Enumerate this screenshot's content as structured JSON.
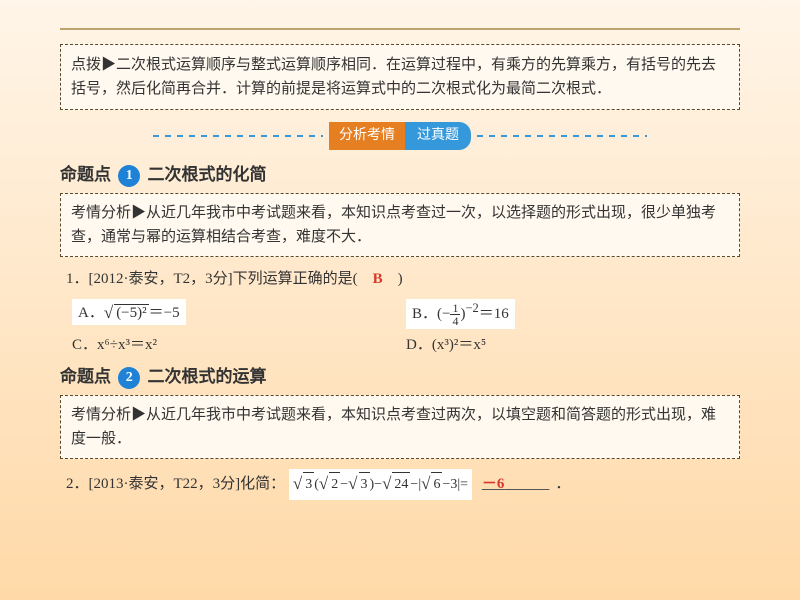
{
  "tip": {
    "label": "点拨▶",
    "text": "二次根式运算顺序与整式运算顺序相同．在运算过程中，有乘方的先算乘方，有括号的先去括号，然后化简再合并．计算的前提是将运算式中的二次根式化为最简二次根式．"
  },
  "banner": {
    "left": "分析考情",
    "right": "过真题"
  },
  "topic1": {
    "prefix": "命题点",
    "num": "1",
    "title": "二次根式的化简",
    "analysis_label": "考情分析▶",
    "analysis_text": "从近几年我市中考试题来看，本知识点考查过一次，以选择题的形式出现，很少单独考查，通常与幂的运算相结合考查，难度不大．",
    "q_label": "1．[2012·泰安，T2，3分]下列运算正确的是(　",
    "q_tail": "　)",
    "answer": "B",
    "optA_label": "A．",
    "optB_label": "B．",
    "optC": "C．x⁶÷x³＝x²",
    "optD": "D．(x³)²＝x⁵"
  },
  "topic2": {
    "prefix": "命题点",
    "num": "2",
    "title": "二次根式的运算",
    "analysis_label": "考情分析▶",
    "analysis_text": "从近几年我市中考试题来看，本知识点考查过两次，以填空题和简答题的形式出现，难度一般．",
    "q_label": "2．[2013·泰安，T22，3分]化简：",
    "answer": "－6",
    "blank_tail": "．"
  },
  "colors": {
    "accent_orange": "#e67e22",
    "accent_blue": "#3598db",
    "circle_blue": "#1f82d6",
    "answer_red": "#d63a2a",
    "bg_top": "#fff5e8",
    "bg_bottom": "#ffd9a8",
    "box_bg": "#fff9ef",
    "dash": "#5a4a2a"
  }
}
